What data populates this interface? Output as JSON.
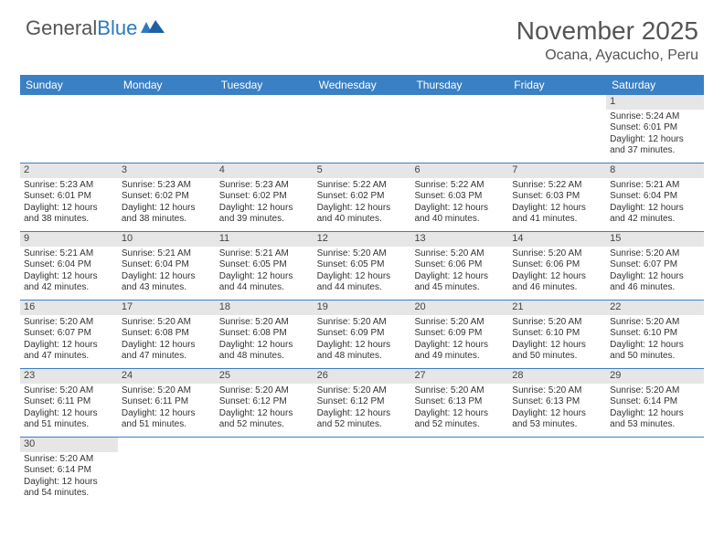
{
  "logo": {
    "text1": "General",
    "text2": "Blue"
  },
  "title": "November 2025",
  "location": "Ocana, Ayacucho, Peru",
  "colors": {
    "header_bg": "#3a80c4",
    "daynum_bg": "#e6e6e6",
    "text": "#333333",
    "title_text": "#555555"
  },
  "day_names": [
    "Sunday",
    "Monday",
    "Tuesday",
    "Wednesday",
    "Thursday",
    "Friday",
    "Saturday"
  ],
  "weeks": [
    [
      null,
      null,
      null,
      null,
      null,
      null,
      {
        "n": "1",
        "sunrise": "Sunrise: 5:24 AM",
        "sunset": "Sunset: 6:01 PM",
        "daylight": "Daylight: 12 hours and 37 minutes."
      }
    ],
    [
      {
        "n": "2",
        "sunrise": "Sunrise: 5:23 AM",
        "sunset": "Sunset: 6:01 PM",
        "daylight": "Daylight: 12 hours and 38 minutes."
      },
      {
        "n": "3",
        "sunrise": "Sunrise: 5:23 AM",
        "sunset": "Sunset: 6:02 PM",
        "daylight": "Daylight: 12 hours and 38 minutes."
      },
      {
        "n": "4",
        "sunrise": "Sunrise: 5:23 AM",
        "sunset": "Sunset: 6:02 PM",
        "daylight": "Daylight: 12 hours and 39 minutes."
      },
      {
        "n": "5",
        "sunrise": "Sunrise: 5:22 AM",
        "sunset": "Sunset: 6:02 PM",
        "daylight": "Daylight: 12 hours and 40 minutes."
      },
      {
        "n": "6",
        "sunrise": "Sunrise: 5:22 AM",
        "sunset": "Sunset: 6:03 PM",
        "daylight": "Daylight: 12 hours and 40 minutes."
      },
      {
        "n": "7",
        "sunrise": "Sunrise: 5:22 AM",
        "sunset": "Sunset: 6:03 PM",
        "daylight": "Daylight: 12 hours and 41 minutes."
      },
      {
        "n": "8",
        "sunrise": "Sunrise: 5:21 AM",
        "sunset": "Sunset: 6:04 PM",
        "daylight": "Daylight: 12 hours and 42 minutes."
      }
    ],
    [
      {
        "n": "9",
        "sunrise": "Sunrise: 5:21 AM",
        "sunset": "Sunset: 6:04 PM",
        "daylight": "Daylight: 12 hours and 42 minutes."
      },
      {
        "n": "10",
        "sunrise": "Sunrise: 5:21 AM",
        "sunset": "Sunset: 6:04 PM",
        "daylight": "Daylight: 12 hours and 43 minutes."
      },
      {
        "n": "11",
        "sunrise": "Sunrise: 5:21 AM",
        "sunset": "Sunset: 6:05 PM",
        "daylight": "Daylight: 12 hours and 44 minutes."
      },
      {
        "n": "12",
        "sunrise": "Sunrise: 5:20 AM",
        "sunset": "Sunset: 6:05 PM",
        "daylight": "Daylight: 12 hours and 44 minutes."
      },
      {
        "n": "13",
        "sunrise": "Sunrise: 5:20 AM",
        "sunset": "Sunset: 6:06 PM",
        "daylight": "Daylight: 12 hours and 45 minutes."
      },
      {
        "n": "14",
        "sunrise": "Sunrise: 5:20 AM",
        "sunset": "Sunset: 6:06 PM",
        "daylight": "Daylight: 12 hours and 46 minutes."
      },
      {
        "n": "15",
        "sunrise": "Sunrise: 5:20 AM",
        "sunset": "Sunset: 6:07 PM",
        "daylight": "Daylight: 12 hours and 46 minutes."
      }
    ],
    [
      {
        "n": "16",
        "sunrise": "Sunrise: 5:20 AM",
        "sunset": "Sunset: 6:07 PM",
        "daylight": "Daylight: 12 hours and 47 minutes."
      },
      {
        "n": "17",
        "sunrise": "Sunrise: 5:20 AM",
        "sunset": "Sunset: 6:08 PM",
        "daylight": "Daylight: 12 hours and 47 minutes."
      },
      {
        "n": "18",
        "sunrise": "Sunrise: 5:20 AM",
        "sunset": "Sunset: 6:08 PM",
        "daylight": "Daylight: 12 hours and 48 minutes."
      },
      {
        "n": "19",
        "sunrise": "Sunrise: 5:20 AM",
        "sunset": "Sunset: 6:09 PM",
        "daylight": "Daylight: 12 hours and 48 minutes."
      },
      {
        "n": "20",
        "sunrise": "Sunrise: 5:20 AM",
        "sunset": "Sunset: 6:09 PM",
        "daylight": "Daylight: 12 hours and 49 minutes."
      },
      {
        "n": "21",
        "sunrise": "Sunrise: 5:20 AM",
        "sunset": "Sunset: 6:10 PM",
        "daylight": "Daylight: 12 hours and 50 minutes."
      },
      {
        "n": "22",
        "sunrise": "Sunrise: 5:20 AM",
        "sunset": "Sunset: 6:10 PM",
        "daylight": "Daylight: 12 hours and 50 minutes."
      }
    ],
    [
      {
        "n": "23",
        "sunrise": "Sunrise: 5:20 AM",
        "sunset": "Sunset: 6:11 PM",
        "daylight": "Daylight: 12 hours and 51 minutes."
      },
      {
        "n": "24",
        "sunrise": "Sunrise: 5:20 AM",
        "sunset": "Sunset: 6:11 PM",
        "daylight": "Daylight: 12 hours and 51 minutes."
      },
      {
        "n": "25",
        "sunrise": "Sunrise: 5:20 AM",
        "sunset": "Sunset: 6:12 PM",
        "daylight": "Daylight: 12 hours and 52 minutes."
      },
      {
        "n": "26",
        "sunrise": "Sunrise: 5:20 AM",
        "sunset": "Sunset: 6:12 PM",
        "daylight": "Daylight: 12 hours and 52 minutes."
      },
      {
        "n": "27",
        "sunrise": "Sunrise: 5:20 AM",
        "sunset": "Sunset: 6:13 PM",
        "daylight": "Daylight: 12 hours and 52 minutes."
      },
      {
        "n": "28",
        "sunrise": "Sunrise: 5:20 AM",
        "sunset": "Sunset: 6:13 PM",
        "daylight": "Daylight: 12 hours and 53 minutes."
      },
      {
        "n": "29",
        "sunrise": "Sunrise: 5:20 AM",
        "sunset": "Sunset: 6:14 PM",
        "daylight": "Daylight: 12 hours and 53 minutes."
      }
    ],
    [
      {
        "n": "30",
        "sunrise": "Sunrise: 5:20 AM",
        "sunset": "Sunset: 6:14 PM",
        "daylight": "Daylight: 12 hours and 54 minutes."
      },
      null,
      null,
      null,
      null,
      null,
      null
    ]
  ]
}
